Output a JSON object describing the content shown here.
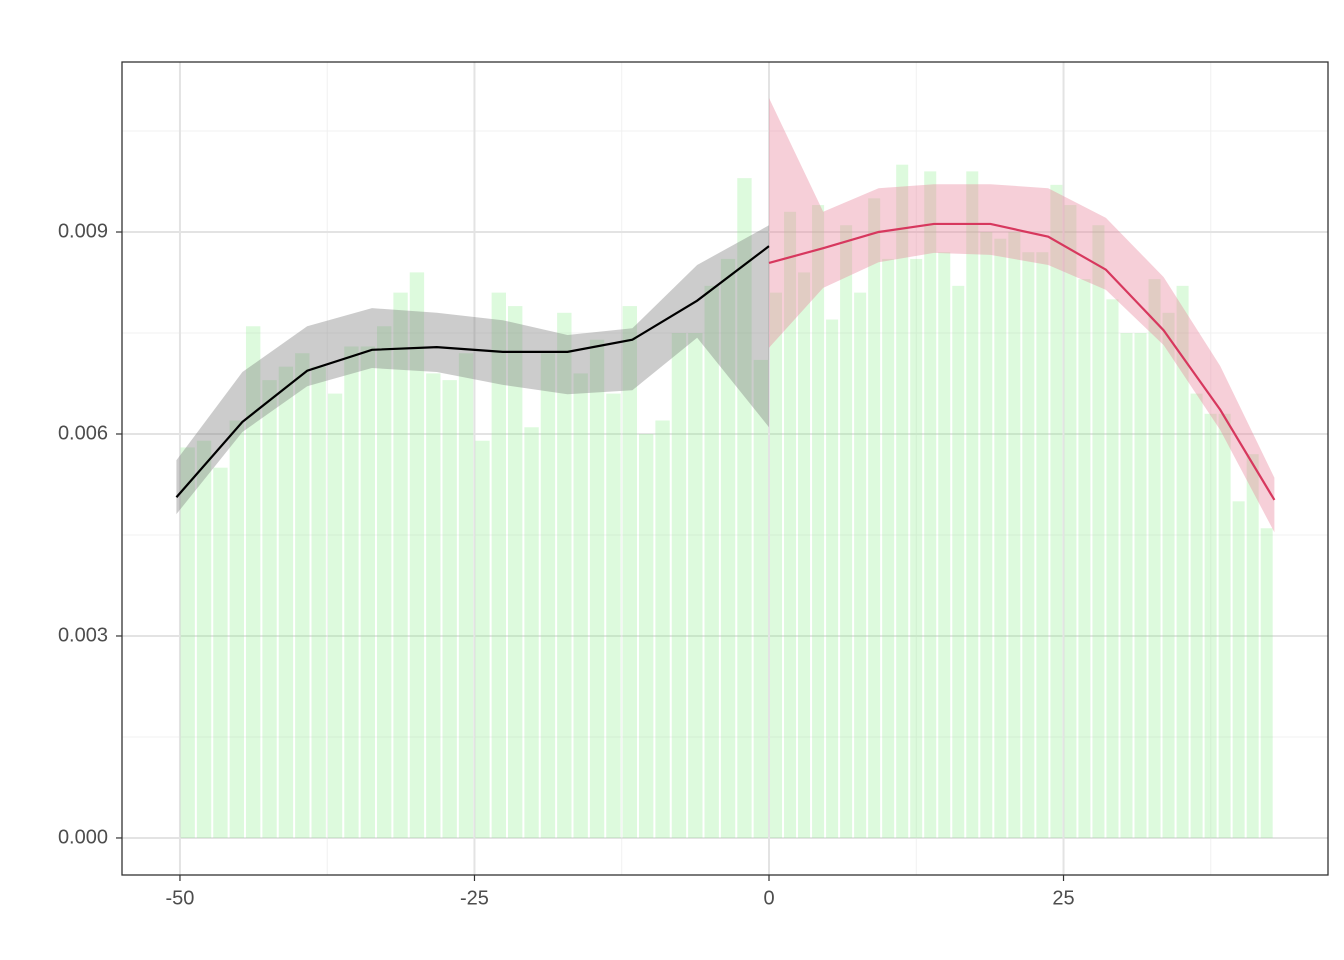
{
  "chart_data": {
    "type": "histogram",
    "bins": [
      -50.04,
      -48.65,
      -47.26,
      -45.87,
      -44.48,
      -43.09,
      -41.7,
      -40.31,
      -38.92,
      -37.53,
      -36.14,
      -34.75,
      -33.36,
      -31.97,
      -30.58,
      -29.19,
      -27.8,
      -26.41,
      -25.02,
      -23.63,
      -22.24,
      -20.85,
      -19.46,
      -18.07,
      -16.68,
      -15.29,
      -13.9,
      -12.51,
      -11.12,
      -9.73,
      -8.34,
      -6.95,
      -5.56,
      -4.17,
      -2.78,
      -1.39,
      0,
      1.19,
      2.38,
      3.57,
      4.76,
      5.95,
      7.14,
      8.33,
      9.52,
      10.71,
      11.9,
      13.09,
      14.28,
      15.47,
      16.66,
      17.85,
      19.04,
      20.23,
      21.42,
      22.61,
      23.8,
      24.99,
      26.18,
      27.37,
      28.56,
      29.75,
      30.94,
      32.13,
      33.32,
      34.51,
      35.7,
      36.89,
      38.08,
      39.27,
      40.46,
      41.65,
      42.84
    ],
    "values": [
      0.0058,
      0.0059,
      0.0055,
      0.0062,
      0.0076,
      0.0068,
      0.007,
      0.0072,
      0.007,
      0.0066,
      0.0073,
      0.0073,
      0.0076,
      0.0081,
      0.0084,
      0.0069,
      0.0068,
      0.0072,
      0.0059,
      0.0081,
      0.0079,
      0.0061,
      0.0072,
      0.0078,
      0.0069,
      0.0074,
      0.0066,
      0.0079,
      0.006,
      0.0062,
      0.0075,
      0.0075,
      0.0082,
      0.0086,
      0.0098,
      0.0071,
      0.0081,
      0.0093,
      0.0084,
      0.0094,
      0.0077,
      0.0091,
      0.0081,
      0.0095,
      0.0086,
      0.01,
      0.0086,
      0.0099,
      0.0087,
      0.0082,
      0.0099,
      0.009,
      0.0089,
      0.009,
      0.0087,
      0.0087,
      0.0097,
      0.0094,
      0.0083,
      0.0091,
      0.008,
      0.0075,
      0.0075,
      0.0083,
      0.0078,
      0.0082,
      0.0066,
      0.0063,
      0.0063,
      0.005,
      0.0057,
      0.0046
    ],
    "color": "#90ee90",
    "series": [
      {
        "color": "#000000",
        "band_color": "#808080",
        "x": [
          -50.3,
          -44.7,
          -39.2,
          -33.7,
          -28.2,
          -22.6,
          -17.1,
          -11.6,
          -6.1,
          0
        ],
        "values": [
          0.00506,
          0.00618,
          0.00694,
          0.00725,
          0.00729,
          0.00722,
          0.00722,
          0.0074,
          0.00798,
          0.00879
        ],
        "lower": [
          0.00481,
          0.00603,
          0.00671,
          0.00698,
          0.00692,
          0.00673,
          0.00659,
          0.00665,
          0.00743,
          0.0061
        ],
        "upper": [
          0.00561,
          0.00692,
          0.0076,
          0.00787,
          0.0078,
          0.00769,
          0.00747,
          0.00757,
          0.00851,
          0.0091
        ]
      },
      {
        "color": "#d7385e",
        "band_color": "#e8869e",
        "x": [
          0,
          4.6,
          9.3,
          14,
          18.8,
          23.7,
          28.6,
          33.5,
          38.3,
          42.9
        ],
        "values": [
          0.00854,
          0.00876,
          0.009,
          0.00912,
          0.00912,
          0.00893,
          0.00844,
          0.00754,
          0.00636,
          0.00502
        ],
        "lower": [
          0.00728,
          0.00817,
          0.00855,
          0.00869,
          0.00866,
          0.00851,
          0.00814,
          0.00732,
          0.00606,
          0.00454
        ],
        "upper": [
          0.01099,
          0.0093,
          0.00965,
          0.00971,
          0.00971,
          0.00965,
          0.00921,
          0.00833,
          0.00701,
          0.00535
        ]
      }
    ],
    "xlim": [
      -54.92,
      47.45
    ],
    "ylim": [
      -0.00055,
      0.011525
    ],
    "xticks": [
      -50,
      -25,
      0,
      25
    ],
    "yticks": [
      {
        "value": 0,
        "label": "0.000"
      },
      {
        "value": 0.003,
        "label": "0.003"
      },
      {
        "value": 0.006,
        "label": "0.006"
      },
      {
        "value": 0.009,
        "label": "0.009"
      }
    ],
    "xminor": [
      -37.5,
      -12.5,
      12.5,
      37.5
    ],
    "yminor": [
      0.0015,
      0.0045,
      0.0075,
      0.0105
    ],
    "grid": true
  }
}
